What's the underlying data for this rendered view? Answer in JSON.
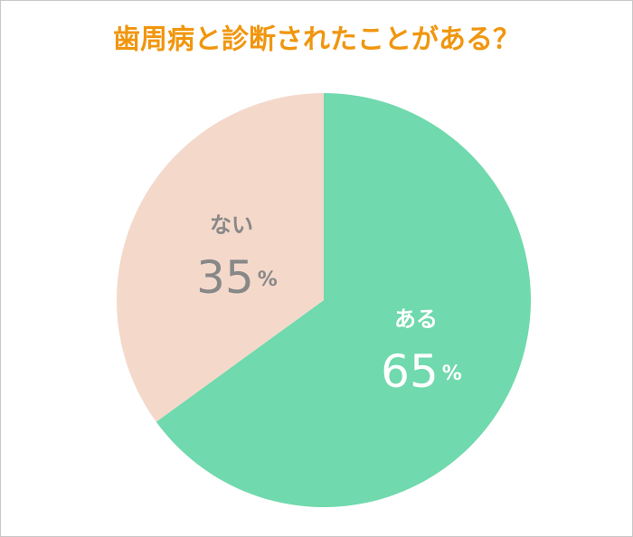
{
  "chart_data": {
    "type": "pie",
    "title": "歯周病と診断されたことがある？",
    "categories": [
      "ある",
      "ない"
    ],
    "values": [
      65,
      35
    ],
    "value_labels": [
      "65%",
      "35%"
    ],
    "colors": [
      "#70d9ad",
      "#f4d9cb"
    ],
    "label_colors": [
      "#ffffff",
      "#888888"
    ],
    "title_color": "#f0960e",
    "start_angle": 0,
    "direction": "clockwise"
  }
}
